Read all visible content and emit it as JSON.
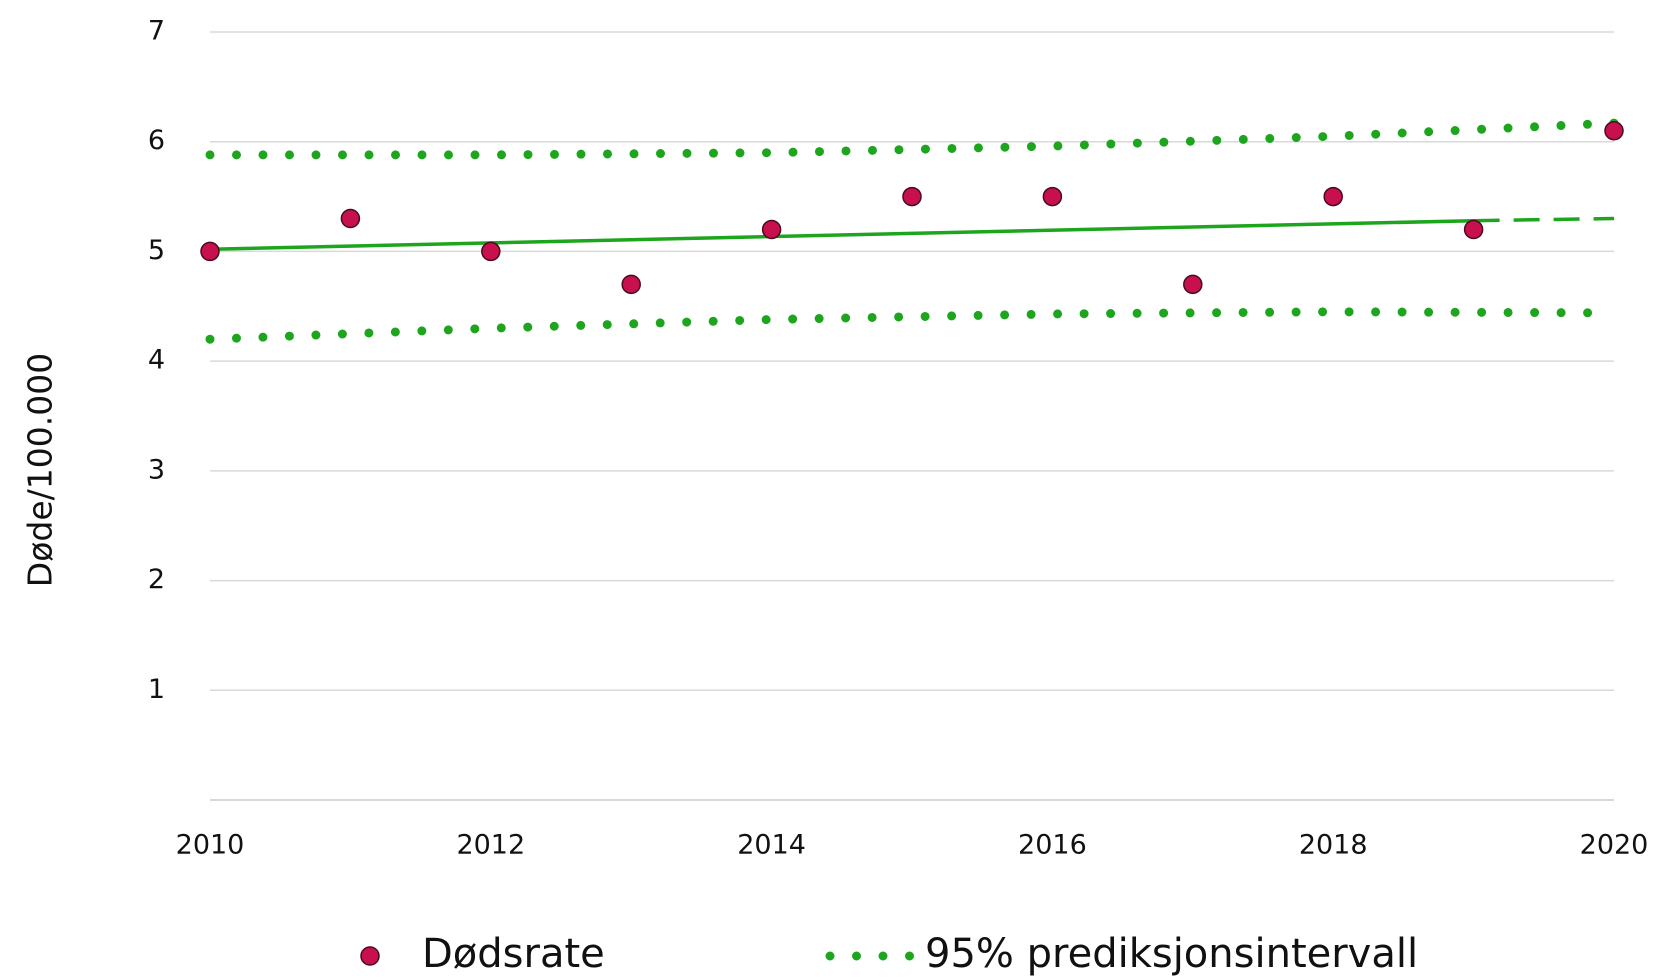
{
  "chart_data": {
    "type": "scatter",
    "y_label": "Døde/100.000",
    "xlim": [
      2010,
      2020
    ],
    "xticks": [
      2010,
      2012,
      2014,
      2016,
      2018,
      2020
    ],
    "ylim": [
      0,
      7
    ],
    "yticks": [
      1,
      2,
      3,
      4,
      5,
      6,
      7
    ],
    "grid": true,
    "legend": "bottom",
    "series": [
      {
        "name": "Dødsrate",
        "color": "#c8104e",
        "style": "marker",
        "x": [
          2010,
          2011,
          2012,
          2013,
          2014,
          2015,
          2016,
          2017,
          2018,
          2019,
          2020
        ],
        "values": [
          5.0,
          5.3,
          5.0,
          4.7,
          5.2,
          5.5,
          5.5,
          4.7,
          5.5,
          5.2,
          6.1
        ]
      },
      {
        "name": "95% prediksjonsintervall",
        "color": "#1ea51e",
        "style": "dotted",
        "x": [
          2010,
          2012,
          2014,
          2016,
          2018,
          2020
        ],
        "values": [
          5.88,
          5.88,
          5.9,
          5.96,
          6.05,
          6.17
        ],
        "lower": [
          4.2,
          4.3,
          4.38,
          4.43,
          4.45,
          4.44
        ]
      },
      {
        "color": "#1ea51e",
        "style": "solid",
        "x": [
          2010,
          2019
        ],
        "values": [
          5.02,
          5.28
        ]
      },
      {
        "color": "#1ea51e",
        "style": "dashed",
        "x": [
          2019,
          2020
        ],
        "values": [
          5.28,
          5.3
        ]
      }
    ]
  }
}
